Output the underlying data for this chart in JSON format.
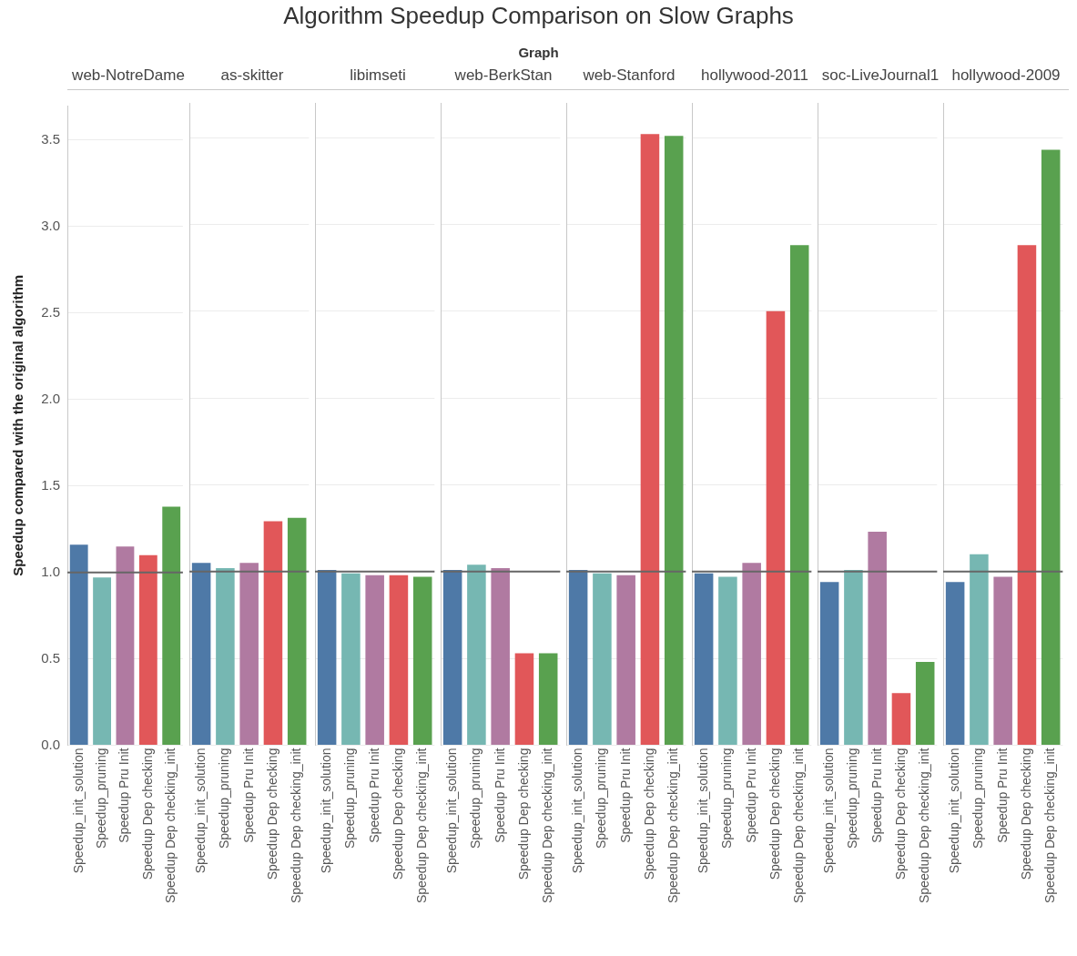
{
  "chart_data": [
    {
      "type": "other",
      "title": "Algorithm Speedup Comparison on Slow Graphs",
      "subtitle": "Graph"
    },
    {
      "type": "bar",
      "title": "web-NotreDame",
      "ylabel": "Speedup compared with the original algorithm",
      "categories": [
        "Speedup_init_solution",
        "Speedup_pruning",
        "Speedup Pru Init",
        "Speedup Dep checking",
        "Speedup Dep checking_init"
      ],
      "values": [
        1.16,
        0.97,
        1.15,
        1.1,
        1.38
      ],
      "colors": [
        "#4e79a7",
        "#76b7b2",
        "#b07aa1",
        "#e15759",
        "#59a14f"
      ],
      "ylim": [
        0,
        3.7
      ],
      "yticks": [
        {
          "value": 0,
          "label": "0.0"
        },
        {
          "value": 0.5,
          "label": "0.5"
        },
        {
          "value": 1,
          "label": "1.0"
        },
        {
          "value": 1.5,
          "label": "1.5"
        },
        {
          "value": 2,
          "label": "2.0"
        },
        {
          "value": 2.5,
          "label": "2.5"
        },
        {
          "value": 3,
          "label": "3.0"
        },
        {
          "value": 3.5,
          "label": "3.5"
        }
      ],
      "grid": "y",
      "ref_lines": [
        {
          "axis": "y",
          "value": 1,
          "color": "#666666"
        }
      ]
    },
    {
      "type": "bar",
      "title": "as-skitter",
      "categories": [
        "Speedup_init_solution",
        "Speedup_pruning",
        "Speedup Pru Init",
        "Speedup Dep checking",
        "Speedup Dep checking_init"
      ],
      "values": [
        1.05,
        1.02,
        1.05,
        1.29,
        1.31
      ],
      "colors": [
        "#4e79a7",
        "#76b7b2",
        "#b07aa1",
        "#e15759",
        "#59a14f"
      ],
      "ylim": [
        0,
        3.7
      ],
      "yticks": [
        0,
        0.5,
        1,
        1.5,
        2,
        2.5,
        3,
        3.5
      ],
      "grid": "y",
      "tick_labels": "x",
      "ref_lines": [
        {
          "axis": "y",
          "value": 1,
          "color": "#666666"
        }
      ]
    },
    {
      "type": "bar",
      "title": "libimseti",
      "categories": [
        "Speedup_init_solution",
        "Speedup_pruning",
        "Speedup Pru Init",
        "Speedup Dep checking",
        "Speedup Dep checking_init"
      ],
      "values": [
        1.01,
        0.99,
        0.98,
        0.98,
        0.97
      ],
      "colors": [
        "#4e79a7",
        "#76b7b2",
        "#b07aa1",
        "#e15759",
        "#59a14f"
      ],
      "ylim": [
        0,
        3.7
      ],
      "yticks": [
        0,
        0.5,
        1,
        1.5,
        2,
        2.5,
        3,
        3.5
      ],
      "grid": "y",
      "tick_labels": "x",
      "ref_lines": [
        {
          "axis": "y",
          "value": 1,
          "color": "#666666"
        }
      ]
    },
    {
      "type": "bar",
      "title": "web-BerkStan",
      "categories": [
        "Speedup_init_solution",
        "Speedup_pruning",
        "Speedup Pru Init",
        "Speedup Dep checking",
        "Speedup Dep checking_init"
      ],
      "values": [
        1.01,
        1.04,
        1.02,
        0.53,
        0.53
      ],
      "colors": [
        "#4e79a7",
        "#76b7b2",
        "#b07aa1",
        "#e15759",
        "#59a14f"
      ],
      "ylim": [
        0,
        3.7
      ],
      "yticks": [
        0,
        0.5,
        1,
        1.5,
        2,
        2.5,
        3,
        3.5
      ],
      "grid": "y",
      "tick_labels": "x",
      "ref_lines": [
        {
          "axis": "y",
          "value": 1,
          "color": "#666666"
        }
      ]
    },
    {
      "type": "bar",
      "title": "web-Stanford",
      "categories": [
        "Speedup_init_solution",
        "Speedup_pruning",
        "Speedup Pru Init",
        "Speedup Dep checking",
        "Speedup Dep checking_init"
      ],
      "values": [
        1.01,
        0.99,
        0.98,
        3.52,
        3.51
      ],
      "colors": [
        "#4e79a7",
        "#76b7b2",
        "#b07aa1",
        "#e15759",
        "#59a14f"
      ],
      "ylim": [
        0,
        3.7
      ],
      "yticks": [
        0,
        0.5,
        1,
        1.5,
        2,
        2.5,
        3,
        3.5
      ],
      "grid": "y",
      "tick_labels": "x",
      "ref_lines": [
        {
          "axis": "y",
          "value": 1,
          "color": "#666666"
        }
      ]
    },
    {
      "type": "bar",
      "title": "hollywood-2011",
      "categories": [
        "Speedup_init_solution",
        "Speedup_pruning",
        "Speedup Pru Init",
        "Speedup Dep checking",
        "Speedup Dep checking_init"
      ],
      "values": [
        0.99,
        0.97,
        1.05,
        2.5,
        2.88
      ],
      "colors": [
        "#4e79a7",
        "#76b7b2",
        "#b07aa1",
        "#e15759",
        "#59a14f"
      ],
      "ylim": [
        0,
        3.7
      ],
      "yticks": [
        0,
        0.5,
        1,
        1.5,
        2,
        2.5,
        3,
        3.5
      ],
      "grid": "y",
      "tick_labels": "x",
      "ref_lines": [
        {
          "axis": "y",
          "value": 1,
          "color": "#666666"
        }
      ]
    },
    {
      "type": "bar",
      "title": "soc-LiveJournal1",
      "categories": [
        "Speedup_init_solution",
        "Speedup_pruning",
        "Speedup Pru Init",
        "Speedup Dep checking",
        "Speedup Dep checking_init"
      ],
      "values": [
        0.94,
        1.01,
        1.23,
        0.3,
        0.48
      ],
      "colors": [
        "#4e79a7",
        "#76b7b2",
        "#b07aa1",
        "#e15759",
        "#59a14f"
      ],
      "ylim": [
        0,
        3.7
      ],
      "yticks": [
        0,
        0.5,
        1,
        1.5,
        2,
        2.5,
        3,
        3.5
      ],
      "grid": "y",
      "tick_labels": "x",
      "ref_lines": [
        {
          "axis": "y",
          "value": 1,
          "color": "#666666"
        }
      ]
    },
    {
      "type": "bar",
      "title": "hollywood-2009",
      "categories": [
        "Speedup_init_solution",
        "Speedup_pruning",
        "Speedup Pru Init",
        "Speedup Dep checking",
        "Speedup Dep checking_init"
      ],
      "values": [
        0.94,
        1.1,
        0.97,
        2.88,
        3.43
      ],
      "colors": [
        "#4e79a7",
        "#76b7b2",
        "#b07aa1",
        "#e15759",
        "#59a14f"
      ],
      "ylim": [
        0,
        3.7
      ],
      "yticks": [
        0,
        0.5,
        1,
        1.5,
        2,
        2.5,
        3,
        3.5
      ],
      "grid": "y",
      "tick_labels": "x",
      "ref_lines": [
        {
          "axis": "y",
          "value": 1,
          "color": "#666666"
        }
      ]
    }
  ]
}
